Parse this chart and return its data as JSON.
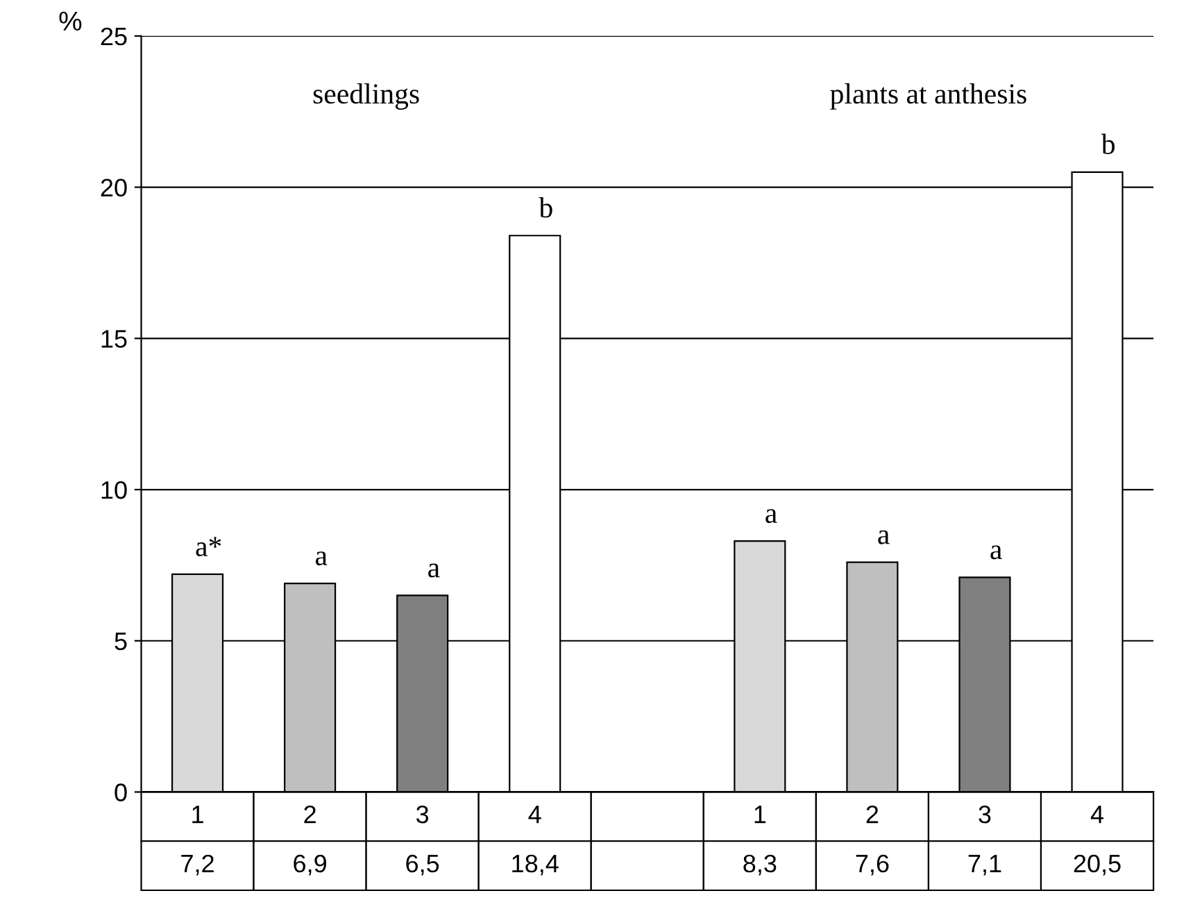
{
  "chart_data": {
    "type": "bar",
    "ylabel": "%",
    "categories": [
      "1",
      "2",
      "3",
      "4",
      null,
      "1",
      "2",
      "3",
      "4"
    ],
    "values": [
      7.2,
      6.9,
      6.5,
      18.4,
      null,
      8.3,
      7.6,
      7.1,
      20.5
    ],
    "value_labels": [
      "7,2",
      "6,9",
      "6,5",
      "18,4",
      null,
      "8,3",
      "7,6",
      "7,1",
      "20,5"
    ],
    "colors": [
      "#d9d9d9",
      "#bfbfbf",
      "#808080",
      "#ffffff",
      null,
      "#d9d9d9",
      "#bfbfbf",
      "#808080",
      "#ffffff"
    ],
    "ylim": [
      0,
      25
    ],
    "yticks": [
      0,
      5,
      10,
      15,
      20,
      25
    ],
    "grid": "y",
    "annotations": [
      "seedlings",
      "plants at anthesis",
      "a*",
      "a",
      "a",
      "b",
      "a",
      "a",
      "a",
      "b"
    ]
  }
}
